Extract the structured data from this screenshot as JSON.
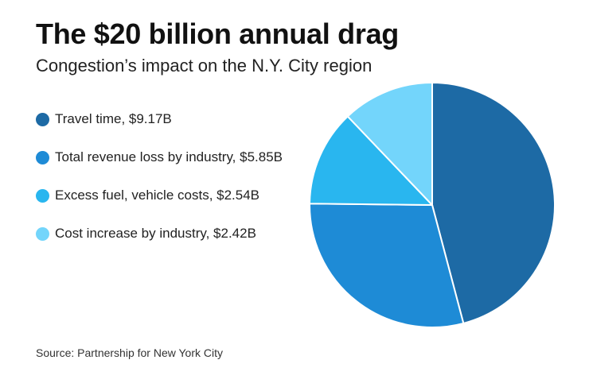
{
  "header": {
    "title": "The $20 billion annual drag",
    "subtitle": "Congestion’s impact on the N.Y. City region"
  },
  "source": "Source: Partnership for New York City",
  "chart_data": {
    "type": "pie",
    "unit": "$B",
    "legend_placement": "left",
    "slices": [
      {
        "label": "Travel time, $9.17B",
        "value": 9.17,
        "color": "#1d6aa5"
      },
      {
        "label": "Total revenue loss by industry, $5.85B",
        "value": 5.85,
        "color": "#1e8bd6"
      },
      {
        "label": "Excess fuel, vehicle costs, $2.54B",
        "value": 2.54,
        "color": "#29b6ef"
      },
      {
        "label": "Cost increase by industry, $2.42B",
        "value": 2.42,
        "color": "#73d5fb"
      }
    ]
  }
}
